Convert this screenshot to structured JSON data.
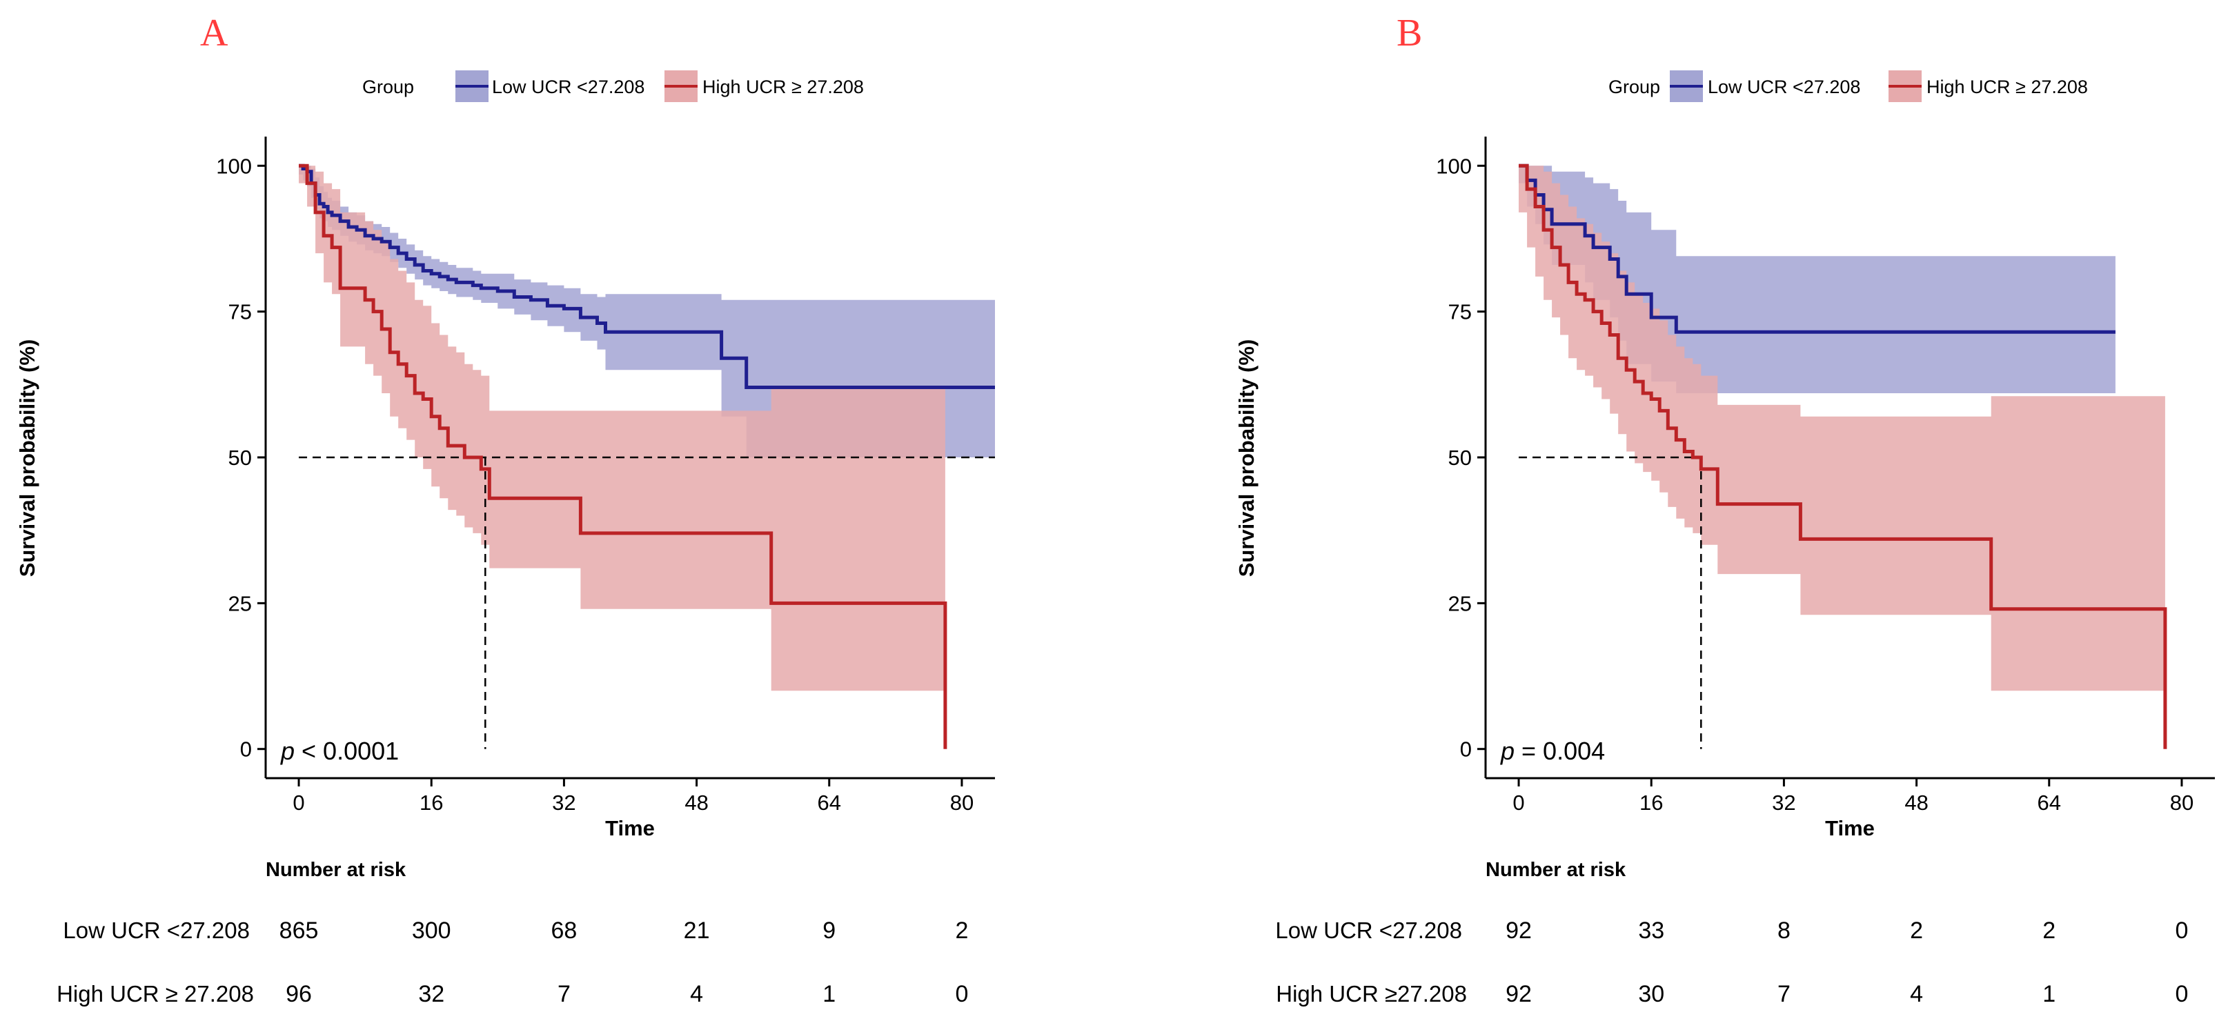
{
  "chart_data": [
    {
      "type": "line",
      "subtype": "kaplan-meier",
      "panel_label": "A",
      "legend": {
        "title": "Group",
        "placement": "top",
        "entries": [
          "Low UCR <27.208",
          "High UCR ≥ 27.208"
        ]
      },
      "xlabel": "Time",
      "ylabel": "Survival probability (%)",
      "xlim": [
        -4,
        84
      ],
      "ylim": [
        -5,
        105
      ],
      "x_ticks": [
        0,
        16,
        32,
        48,
        64,
        80
      ],
      "y_ticks": [
        0,
        25,
        50,
        75,
        100
      ],
      "p_label": "p",
      "p_value": " < 0.0001",
      "median_line": {
        "y": 50,
        "x_end": 84,
        "x_median": 22.5
      },
      "colors": {
        "low": "#1f1f8f",
        "high": "#bb2326",
        "low_fill": "#a3a5d3",
        "high_fill": "#e6aaac"
      },
      "series": [
        {
          "name": "Low UCR <27.208",
          "x": [
            0,
            0.5,
            1,
            1.5,
            2,
            2.5,
            3,
            3.5,
            4,
            5,
            6,
            7,
            8,
            9,
            10,
            11,
            12,
            13,
            14,
            15,
            16,
            17,
            18,
            19,
            20,
            21,
            22,
            24,
            26,
            28,
            30,
            32,
            34,
            36,
            37,
            40,
            44,
            48,
            51,
            52,
            54,
            84
          ],
          "values": [
            100,
            99.5,
            99,
            97,
            95,
            93.5,
            93,
            92,
            91.5,
            90.5,
            89.5,
            89,
            88,
            87.5,
            87,
            86,
            85,
            84,
            83,
            82,
            81.5,
            81,
            80.5,
            80,
            80,
            79.5,
            79,
            78.5,
            77.5,
            77,
            76,
            75.5,
            74,
            73,
            71.5,
            71.5,
            71.5,
            71.5,
            67,
            67,
            62,
            62
          ],
          "ci_upper": [
            100,
            100,
            100,
            99.5,
            98,
            96.5,
            95.5,
            94.5,
            94,
            93,
            92,
            91.5,
            90.5,
            90,
            89.5,
            88.5,
            87.5,
            86.5,
            85.5,
            84.5,
            84,
            83.5,
            83,
            82.5,
            82.5,
            82,
            81.5,
            81.5,
            80.5,
            80,
            79.5,
            79,
            78,
            77.5,
            78,
            78,
            78,
            78,
            77,
            77,
            77,
            77
          ],
          "ci_lower": [
            98.5,
            97.5,
            96.5,
            94.5,
            92.5,
            91,
            90.5,
            89.5,
            89,
            88,
            87,
            86.5,
            85.5,
            85,
            84.5,
            83.5,
            82.5,
            81.5,
            80.5,
            79.5,
            79,
            78.5,
            78,
            77.5,
            77.5,
            77,
            76.5,
            75.5,
            74.5,
            73.5,
            72.5,
            71.5,
            70,
            68.5,
            65,
            65,
            65,
            65,
            57,
            57,
            50,
            50
          ]
        },
        {
          "name": "High UCR ≥ 27.208",
          "x": [
            0,
            1,
            2,
            3,
            4,
            5,
            7,
            8,
            9,
            10,
            11,
            12,
            13,
            14,
            15,
            16,
            17,
            18,
            19,
            20,
            21,
            22,
            23,
            24,
            34,
            57,
            78
          ],
          "values": [
            100,
            97,
            92,
            88,
            86,
            79,
            79,
            77,
            75,
            72,
            68,
            66,
            64,
            61,
            60,
            57,
            55,
            52,
            52,
            50,
            50,
            48,
            43,
            43,
            37,
            25,
            0
          ],
          "ci_upper": [
            100,
            100,
            99,
            97,
            96,
            92,
            92,
            90.5,
            89,
            87,
            84,
            82,
            80,
            77,
            76,
            73,
            71,
            69,
            68,
            66,
            65,
            64,
            58,
            58,
            58,
            62,
            62
          ],
          "ci_lower": [
            97,
            93,
            85,
            80,
            78,
            69,
            69,
            66,
            64,
            61,
            57,
            55,
            53,
            50,
            48,
            45,
            43,
            41,
            40,
            38,
            37,
            35,
            31,
            31,
            24,
            10,
            10
          ]
        }
      ],
      "risk_table": {
        "title": "Number at risk",
        "time_points": [
          0,
          16,
          32,
          48,
          64,
          80
        ],
        "rows": [
          {
            "label": "Low UCR <27.208",
            "counts": [
              "865",
              "300",
              "68",
              "21",
              "9",
              "2"
            ]
          },
          {
            "label": "High UCR ≥ 27.208",
            "counts": [
              "96",
              "32",
              "7",
              "4",
              "1",
              "0"
            ]
          }
        ]
      }
    },
    {
      "type": "line",
      "subtype": "kaplan-meier",
      "panel_label": "B",
      "legend": {
        "title": "Group",
        "placement": "top",
        "entries": [
          "Low UCR <27.208",
          "High UCR ≥ 27.208"
        ]
      },
      "xlabel": "Time",
      "ylabel": "Survival probability (%)",
      "xlim": [
        -4,
        84
      ],
      "ylim": [
        -5,
        105
      ],
      "x_ticks": [
        0,
        16,
        32,
        48,
        64,
        80
      ],
      "y_ticks": [
        0,
        25,
        50,
        75,
        100
      ],
      "p_label": "p",
      "p_value": " = 0.004",
      "median_line": {
        "y": 50,
        "x_end": 22,
        "x_median": 22
      },
      "colors": {
        "low": "#1f1f8f",
        "high": "#bb2326",
        "low_fill": "#a3a5d3",
        "high_fill": "#e6aaac"
      },
      "series": [
        {
          "name": "Low UCR <27.208",
          "x": [
            0,
            1,
            2,
            3,
            4,
            6,
            8,
            9,
            10,
            11,
            12,
            13,
            14,
            16,
            19,
            72
          ],
          "values": [
            100,
            97.5,
            95,
            92.5,
            90,
            90,
            88,
            86,
            86,
            84,
            81,
            78,
            78,
            74,
            71.5,
            71.5
          ],
          "ci_upper": [
            100,
            100,
            100,
            100,
            99,
            99,
            98,
            97,
            97,
            96,
            94,
            92,
            92,
            89,
            84.5,
            84.5
          ],
          "ci_lower": [
            97,
            93,
            90,
            86.5,
            83,
            83,
            80,
            77,
            77,
            74,
            70,
            66,
            66,
            63,
            61,
            61
          ]
        },
        {
          "name": "High UCR ≥ 27.208",
          "x": [
            0,
            1,
            2,
            3,
            4,
            5,
            6,
            7,
            8,
            9,
            10,
            11,
            12,
            13,
            14,
            15,
            16,
            17,
            18,
            19,
            20,
            21,
            22,
            24,
            34,
            57,
            78
          ],
          "values": [
            100,
            96,
            93,
            89,
            86,
            83,
            80,
            78,
            77,
            75,
            73,
            71,
            67,
            65,
            63,
            61,
            60,
            58,
            55,
            53,
            51,
            50,
            48,
            42,
            36,
            24,
            0
          ],
          "ci_upper": [
            100,
            100,
            100,
            99,
            97,
            95,
            93,
            91,
            90,
            88.5,
            87,
            85,
            82,
            80,
            78,
            76.5,
            75.5,
            73.5,
            71,
            69,
            67,
            66,
            64,
            59,
            57,
            60.5,
            60.5
          ],
          "ci_lower": [
            92,
            86,
            81,
            77,
            74,
            71,
            67,
            65,
            64,
            62,
            60,
            57.5,
            54,
            51,
            49,
            47.5,
            46,
            44,
            41.5,
            39.5,
            38,
            37,
            35,
            30,
            23,
            10,
            10
          ]
        }
      ],
      "risk_table": {
        "title": "Number at risk",
        "time_points": [
          0,
          16,
          32,
          48,
          64,
          80
        ],
        "rows": [
          {
            "label": "Low UCR <27.208",
            "counts": [
              "92",
              "33",
              "8",
              "2",
              "2",
              "0"
            ]
          },
          {
            "label": "High UCR ≥27.208",
            "counts": [
              "92",
              "30",
              "7",
              "4",
              "1",
              "0"
            ]
          }
        ]
      }
    }
  ]
}
